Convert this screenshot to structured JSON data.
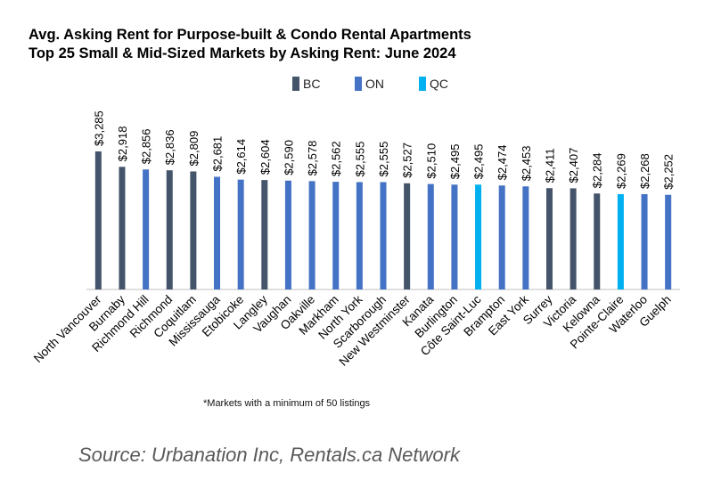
{
  "title_line1": "Avg. Asking Rent for Purpose-built & Condo Rental Apartments",
  "title_line2": "Top 25 Small & Mid-Sized Markets by Asking Rent: June 2024",
  "footnote": "*Markets with a minimum of 50 listings",
  "source": "Source: Urbanation Inc, Rentals.ca Network",
  "colors": {
    "BC": "#44546a",
    "ON": "#4472c4",
    "QC": "#00b0f0",
    "axis": "#bfbfbf"
  },
  "legend": [
    {
      "key": "BC",
      "label": "BC"
    },
    {
      "key": "ON",
      "label": "ON"
    },
    {
      "key": "QC",
      "label": "QC"
    }
  ],
  "chart_data": {
    "type": "bar",
    "title": "Avg. Asking Rent for Purpose-built & Condo Rental Apartments",
    "subtitle": "Top 25 Small & Mid-Sized Markets by Asking Rent: June 2024",
    "categories": [
      "North Vancouver",
      "Burnaby",
      "Richmond Hill",
      "Richmond",
      "Coquitlam",
      "Mississauga",
      "Etobicoke",
      "Langley",
      "Vaughan",
      "Oakville",
      "Markham",
      "North York",
      "Scarborough",
      "New Westminster",
      "Kanata",
      "Burlington",
      "Côte Saint-Luc",
      "Brampton",
      "East York",
      "Surrey",
      "Victoria",
      "Kelowna",
      "Pointe-Claire",
      "Waterloo",
      "Guelph"
    ],
    "values": [
      3285,
      2918,
      2856,
      2836,
      2809,
      2681,
      2614,
      2604,
      2590,
      2578,
      2562,
      2555,
      2555,
      2527,
      2510,
      2495,
      2495,
      2474,
      2453,
      2411,
      2407,
      2284,
      2269,
      2268,
      2252
    ],
    "value_labels": [
      "$3,285",
      "$2,918",
      "$2,856",
      "$2,836",
      "$2,809",
      "$2,681",
      "$2,614",
      "$2,604",
      "$2,590",
      "$2,578",
      "$2,562",
      "$2,555",
      "$2,555",
      "$2,527",
      "$2,510",
      "$2,495",
      "$2,495",
      "$2,474",
      "$2,453",
      "$2,411",
      "$2,407",
      "$2,284",
      "$2,269",
      "$2,268",
      "$2,252"
    ],
    "region": [
      "BC",
      "BC",
      "ON",
      "BC",
      "BC",
      "ON",
      "ON",
      "BC",
      "ON",
      "ON",
      "ON",
      "ON",
      "ON",
      "BC",
      "ON",
      "ON",
      "QC",
      "ON",
      "ON",
      "BC",
      "BC",
      "BC",
      "QC",
      "ON",
      "ON"
    ],
    "legend_position": "top-center",
    "grid": false
  }
}
